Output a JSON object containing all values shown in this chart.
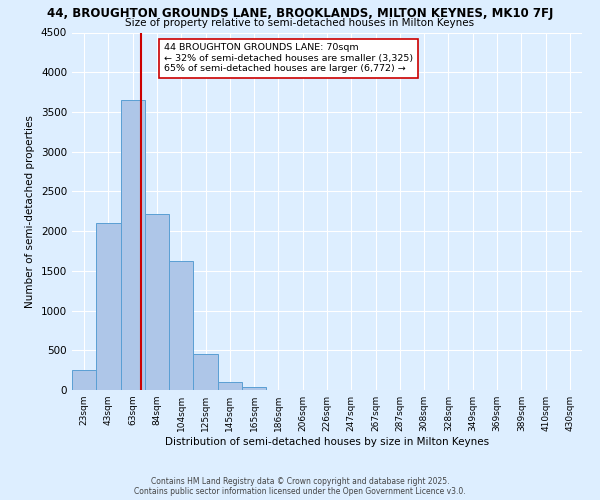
{
  "title_line1": "44, BROUGHTON GROUNDS LANE, BROOKLANDS, MILTON KEYNES, MK10 7FJ",
  "title_line2": "Size of property relative to semi-detached houses in Milton Keynes",
  "xlabel": "Distribution of semi-detached houses by size in Milton Keynes",
  "ylabel": "Number of semi-detached properties",
  "footer_line1": "Contains HM Land Registry data © Crown copyright and database right 2025.",
  "footer_line2": "Contains public sector information licensed under the Open Government Licence v3.0.",
  "bin_labels": [
    "23sqm",
    "43sqm",
    "63sqm",
    "84sqm",
    "104sqm",
    "125sqm",
    "145sqm",
    "165sqm",
    "186sqm",
    "206sqm",
    "226sqm",
    "247sqm",
    "267sqm",
    "287sqm",
    "308sqm",
    "328sqm",
    "349sqm",
    "369sqm",
    "389sqm",
    "410sqm",
    "430sqm"
  ],
  "bin_values": [
    250,
    2100,
    3650,
    2220,
    1630,
    450,
    100,
    40,
    0,
    0,
    0,
    0,
    0,
    0,
    0,
    0,
    0,
    0,
    0,
    0,
    0
  ],
  "bar_color": "#aec6e8",
  "bar_edge_color": "#5a9fd4",
  "property_line_color": "#cc0000",
  "property_line_bin_index": 2.35,
  "annotation_text_line1": "44 BROUGHTON GROUNDS LANE: 70sqm",
  "annotation_text_line2": "← 32% of semi-detached houses are smaller (3,325)",
  "annotation_text_line3": "65% of semi-detached houses are larger (6,772) →",
  "ylim": [
    0,
    4500
  ],
  "background_color": "#ddeeff",
  "grid_color": "#ffffff",
  "yticks": [
    0,
    500,
    1000,
    1500,
    2000,
    2500,
    3000,
    3500,
    4000,
    4500
  ]
}
